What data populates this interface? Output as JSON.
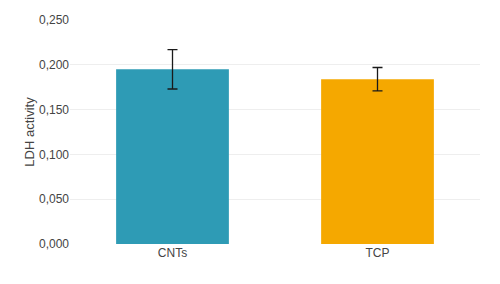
{
  "chart_data": {
    "type": "bar",
    "categories": [
      "CNTs",
      "TCP"
    ],
    "values": [
      0.195,
      0.184
    ],
    "errors": [
      0.022,
      0.013
    ],
    "colors": [
      "#2E9BB5",
      "#F5A800"
    ],
    "ylabel": "LDH activity",
    "ylim": [
      0.0,
      0.25
    ],
    "yticks": [
      {
        "value": 0.0,
        "label": "0,000"
      },
      {
        "value": 0.05,
        "label": "0,050"
      },
      {
        "value": 0.1,
        "label": "0,100"
      },
      {
        "value": 0.15,
        "label": "0,150"
      },
      {
        "value": 0.2,
        "label": "0,200"
      },
      {
        "value": 0.25,
        "label": "0,250"
      }
    ],
    "grid": true
  }
}
